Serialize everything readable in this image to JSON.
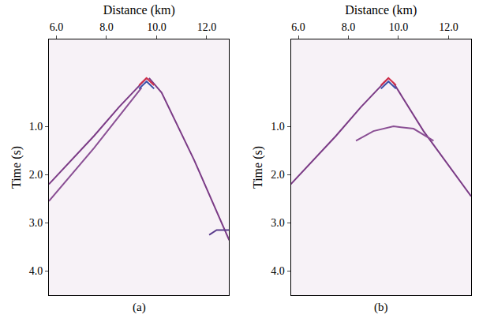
{
  "chart_data": [
    {
      "type": "line",
      "title": "(a)",
      "x_label": "Distance (km)",
      "y_label": "Time (s)",
      "xlim": [
        5.7,
        12.9
      ],
      "ylim": [
        4.5,
        -0.8
      ],
      "xticks": [
        {
          "value": 6,
          "label": "6.0"
        },
        {
          "value": 8,
          "label": "8.0"
        },
        {
          "value": 10,
          "label": "10.0"
        },
        {
          "value": 12,
          "label": "12.0"
        }
      ],
      "yticks": [
        {
          "value": 1,
          "label": "1.0"
        },
        {
          "value": 2,
          "label": "2.0"
        },
        {
          "value": 3,
          "label": "3.0"
        },
        {
          "value": 4,
          "label": "4.0"
        }
      ],
      "grid": false,
      "series": [
        {
          "color": "#7b3b86",
          "x": [
            9.6,
            8.5,
            7.5,
            6.5,
            5.7
          ],
          "values": [
            0.0,
            0.6,
            1.2,
            1.75,
            2.2
          ]
        },
        {
          "color": "#8a4f94",
          "x": [
            9.4,
            7.5,
            5.7
          ],
          "values": [
            0.2,
            1.45,
            2.55
          ]
        },
        {
          "color": "#7b3b86",
          "x": [
            9.7,
            10.2,
            11.5,
            12.9
          ],
          "values": [
            0.0,
            0.3,
            1.7,
            3.36
          ]
        },
        {
          "color": "#d0304a",
          "x": [
            9.3,
            9.6,
            9.9
          ],
          "values": [
            0.15,
            0.0,
            0.15
          ]
        },
        {
          "color": "#3a4fa8",
          "x": [
            9.3,
            9.6,
            9.9
          ],
          "values": [
            0.22,
            0.07,
            0.22
          ]
        },
        {
          "color": "#5a3c8c",
          "x": [
            12.1,
            12.4,
            12.9
          ],
          "values": [
            3.25,
            3.15,
            3.15
          ]
        }
      ]
    },
    {
      "type": "line",
      "title": "(b)",
      "x_label": "Distance (km)",
      "y_label": "Time (s)",
      "xlim": [
        5.7,
        12.9
      ],
      "ylim": [
        4.5,
        -0.8
      ],
      "xticks": [
        {
          "value": 6,
          "label": "6.0"
        },
        {
          "value": 8,
          "label": "8.0"
        },
        {
          "value": 10,
          "label": "10.0"
        },
        {
          "value": 12,
          "label": "12.0"
        }
      ],
      "yticks": [
        {
          "value": 1,
          "label": "1.0"
        },
        {
          "value": 2,
          "label": "2.0"
        },
        {
          "value": 3,
          "label": "3.0"
        },
        {
          "value": 4,
          "label": "4.0"
        }
      ],
      "grid": false,
      "series": [
        {
          "color": "#7b3b86",
          "x": [
            9.6,
            8.5,
            7.5,
            6.5,
            5.7
          ],
          "values": [
            0.0,
            0.6,
            1.2,
            1.75,
            2.2
          ]
        },
        {
          "color": "#7b3b86",
          "x": [
            9.8,
            11.0,
            12.9
          ],
          "values": [
            0.1,
            1.1,
            2.45
          ]
        },
        {
          "color": "#8a4f94",
          "x": [
            8.3,
            9.0,
            9.8,
            10.6,
            11.4
          ],
          "values": [
            1.3,
            1.1,
            1.0,
            1.05,
            1.3
          ]
        },
        {
          "color": "#d0304a",
          "x": [
            9.3,
            9.6,
            9.9
          ],
          "values": [
            0.15,
            0.0,
            0.15
          ]
        },
        {
          "color": "#3a4fa8",
          "x": [
            9.3,
            9.6,
            9.9
          ],
          "values": [
            0.22,
            0.07,
            0.22
          ]
        }
      ]
    }
  ]
}
